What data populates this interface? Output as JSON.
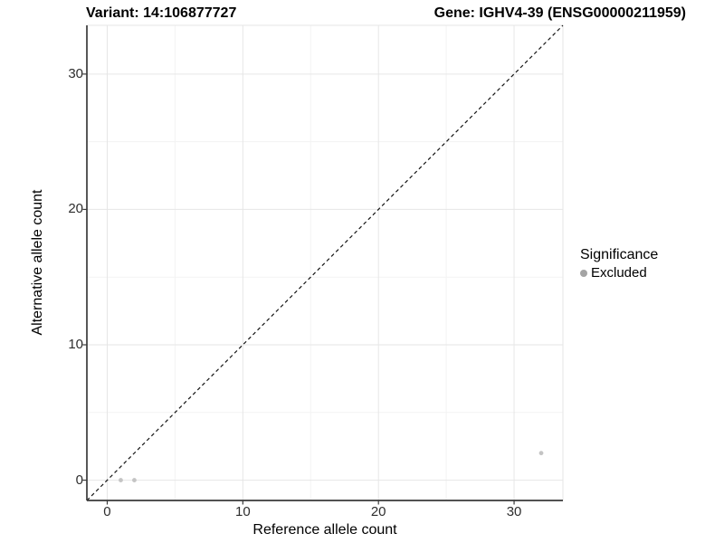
{
  "chart_data": {
    "type": "scatter",
    "title_left": "Variant: 14:106877727",
    "title_right": "Gene: IGHV4-39 (ENSG00000211959)",
    "xlabel": "Reference allele count",
    "ylabel": "Alternative allele count",
    "x_ticks": [
      0,
      10,
      20,
      30
    ],
    "y_ticks": [
      0,
      10,
      20,
      30
    ],
    "x_minor_ticks": [
      5,
      15,
      25
    ],
    "y_minor_ticks": [
      5,
      15,
      25
    ],
    "xlim": [
      -1.5,
      33.6
    ],
    "ylim": [
      -1.5,
      33.6
    ],
    "grid": "major+minor",
    "legend": {
      "title": "Significance",
      "position": "right",
      "entries": [
        {
          "label": "Excluded",
          "marker": "circle",
          "color": "#a4a4a4"
        }
      ]
    },
    "identity_line": {
      "style": "dashed",
      "from": [
        -1.5,
        -1.5
      ],
      "to": [
        33.6,
        33.6
      ]
    },
    "series": [
      {
        "name": "Excluded",
        "color": "#c4c4c4",
        "points": [
          {
            "x": 1,
            "y": 0
          },
          {
            "x": 2,
            "y": 0
          },
          {
            "x": 32,
            "y": 2
          }
        ]
      }
    ],
    "colors": {
      "grid_major": "#e6e6e6",
      "grid_minor": "#f3f3f3",
      "panel_border": "#e6e6e6",
      "axis_line": "#3a3a3a",
      "tick_mark": "#3a3a3a",
      "tick_text": "#2e2e2e",
      "identity_line": "#141414",
      "point": "#c4c4c4",
      "legend_marker": "#a4a4a4"
    }
  }
}
